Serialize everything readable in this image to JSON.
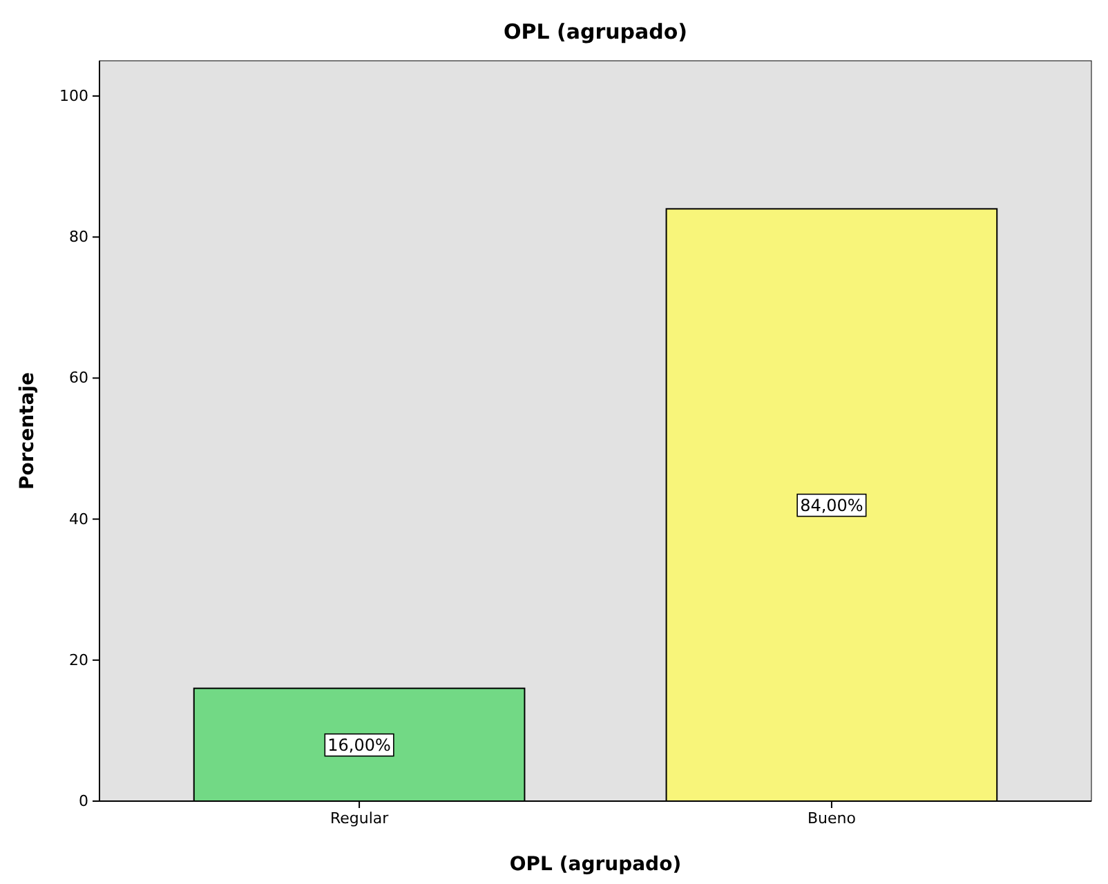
{
  "chart_data": {
    "type": "bar",
    "title": "OPL (agrupado)",
    "xlabel": "OPL (agrupado)",
    "ylabel": "Porcentaje",
    "categories": [
      "Regular",
      "Bueno"
    ],
    "values": [
      16,
      84
    ],
    "colors": [
      "#72d985",
      "#f8f57a"
    ],
    "value_labels": [
      "16,00%",
      "84,00%"
    ],
    "ylim": [
      0,
      105
    ],
    "yticks": [
      0,
      20,
      40,
      60,
      80,
      100
    ],
    "grid": false
  }
}
